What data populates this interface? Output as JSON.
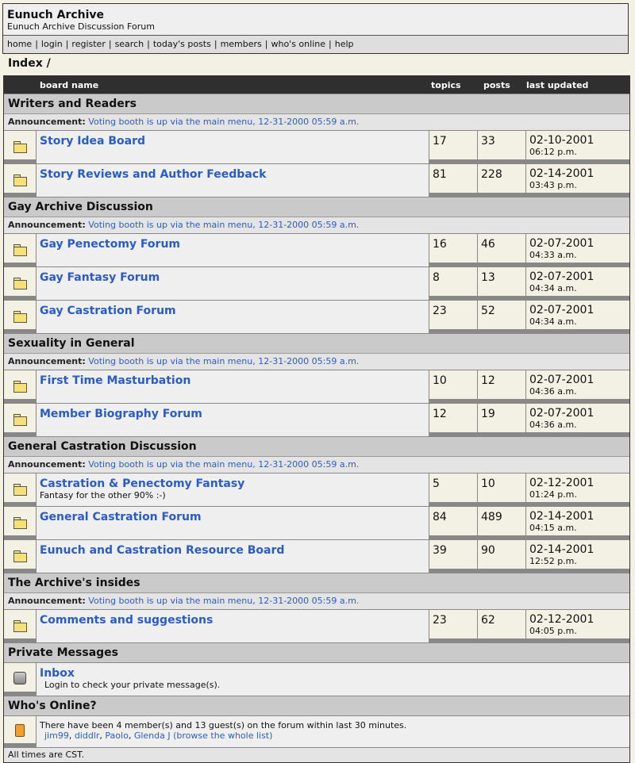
{
  "header": {
    "title": "Eunuch Archive",
    "subtitle": "Eunuch Archive Discussion Forum",
    "nav": [
      "home",
      "login",
      "register",
      "search",
      "today's posts",
      "members",
      "who's online",
      "help"
    ]
  },
  "index_title": "Index /",
  "columns": {
    "name": "board name",
    "topics": "topics",
    "posts": "posts",
    "updated": "last updated"
  },
  "announcement": {
    "label": "Announcement:",
    "text": "Voting booth is up via the main menu, 12-31-2000 05:59 a.m."
  },
  "categories": [
    {
      "name": "Writers and Readers",
      "boards": [
        {
          "name": "Story Idea Board",
          "desc": "",
          "topics": "17",
          "posts": "33",
          "date": "02-10-2001",
          "time": "06:12 p.m."
        },
        {
          "name": "Story Reviews and Author Feedback",
          "desc": "",
          "topics": "81",
          "posts": "228",
          "date": "02-14-2001",
          "time": "03:43 p.m."
        }
      ]
    },
    {
      "name": "Gay Archive Discussion",
      "boards": [
        {
          "name": "Gay Penectomy Forum",
          "desc": "",
          "topics": "16",
          "posts": "46",
          "date": "02-07-2001",
          "time": "04:33 a.m."
        },
        {
          "name": "Gay Fantasy Forum",
          "desc": "",
          "topics": "8",
          "posts": "13",
          "date": "02-07-2001",
          "time": "04:34 a.m."
        },
        {
          "name": "Gay Castration Forum",
          "desc": "",
          "topics": "23",
          "posts": "52",
          "date": "02-07-2001",
          "time": "04:34 a.m."
        }
      ]
    },
    {
      "name": "Sexuality in General",
      "boards": [
        {
          "name": "First Time Masturbation",
          "desc": "",
          "topics": "10",
          "posts": "12",
          "date": "02-07-2001",
          "time": "04:36 a.m."
        },
        {
          "name": "Member Biography Forum",
          "desc": "",
          "topics": "12",
          "posts": "19",
          "date": "02-07-2001",
          "time": "04:36 a.m."
        }
      ]
    },
    {
      "name": "General Castration Discussion",
      "boards": [
        {
          "name": "Castration & Penectomy Fantasy",
          "desc": "Fantasy for the other 90% :-)",
          "topics": "5",
          "posts": "10",
          "date": "02-12-2001",
          "time": "01:24 p.m."
        },
        {
          "name": "General Castration Forum",
          "desc": "",
          "topics": "84",
          "posts": "489",
          "date": "02-14-2001",
          "time": "04:15 a.m."
        },
        {
          "name": "Eunuch and Castration Resource Board",
          "desc": "",
          "topics": "39",
          "posts": "90",
          "date": "02-14-2001",
          "time": "12:52 p.m."
        }
      ]
    },
    {
      "name": "The Archive's insides",
      "boards": [
        {
          "name": "Comments and suggestions",
          "desc": "",
          "topics": "23",
          "posts": "62",
          "date": "02-12-2001",
          "time": "04:05 p.m."
        }
      ]
    }
  ],
  "private_messages": {
    "heading": "Private Messages",
    "title": "Inbox",
    "text": "Login to check your private message(s)."
  },
  "whos_online": {
    "heading": "Who's Online?",
    "text": "There have been 4 member(s) and 13 guest(s) on the forum within last 30 minutes.",
    "users": [
      "jim99",
      "diddlr",
      "Paolo",
      "Glenda J"
    ],
    "browse": "(browse the whole list)"
  },
  "footer": "All times are CST."
}
